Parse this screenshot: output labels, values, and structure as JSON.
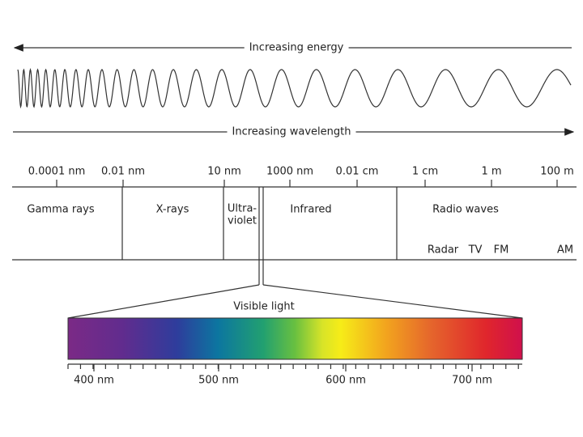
{
  "energy_label": "Increasing energy",
  "wavelength_label": "Increasing wavelength",
  "scale": {
    "labels": [
      "0.0001 nm",
      "0.01 nm",
      "10 nm",
      "1000 nm",
      "0.01 cm",
      "1 cm",
      "1 m",
      "100 m"
    ]
  },
  "regions": {
    "gamma": "Gamma rays",
    "xrays": "X-rays",
    "uv": [
      "Ultra-",
      "violet"
    ],
    "infrared": "Infrared",
    "radio": "Radio waves"
  },
  "radio_bands": [
    "Radar",
    "TV",
    "FM",
    "AM"
  ],
  "visible": {
    "title": "Visible light",
    "ticks": [
      "400 nm",
      "500 nm",
      "600 nm",
      "700 nm"
    ]
  }
}
